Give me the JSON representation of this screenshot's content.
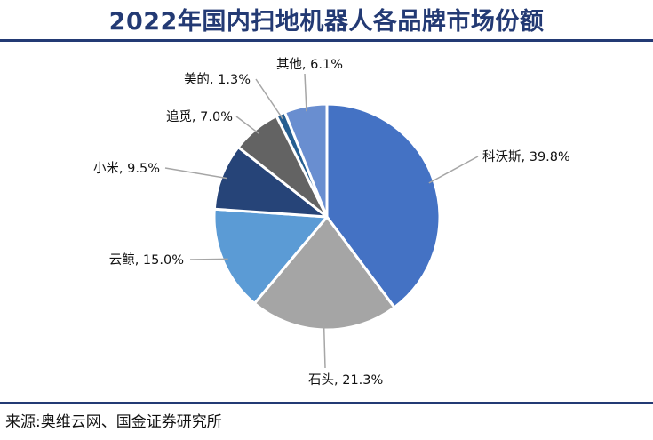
{
  "title": "2022年国内扫地机器人各品牌市场份额",
  "source": "来源:奥维云网、国金证券研究所",
  "chart_data": {
    "type": "pie",
    "title": "2022年国内扫地机器人各品牌市场份额",
    "unit": "%",
    "slices": [
      {
        "name": "科沃斯",
        "value": 39.8,
        "label": "科沃斯, 39.8%",
        "color": "#4472c4"
      },
      {
        "name": "石头",
        "value": 21.3,
        "label": "石头, 21.3%",
        "color": "#a5a5a5"
      },
      {
        "name": "云鲸",
        "value": 15.0,
        "label": "云鲸, 15.0%",
        "color": "#5b9bd5"
      },
      {
        "name": "小米",
        "value": 9.5,
        "label": "小米, 9.5%",
        "color": "#264478"
      },
      {
        "name": "追觅",
        "value": 7.0,
        "label": "追觅, 7.0%",
        "color": "#636363"
      },
      {
        "name": "美的",
        "value": 1.3,
        "label": "美的, 1.3%",
        "color": "#255e91"
      },
      {
        "name": "其他",
        "value": 6.1,
        "label": "其他, 6.1%",
        "color": "#698ed0"
      }
    ]
  }
}
